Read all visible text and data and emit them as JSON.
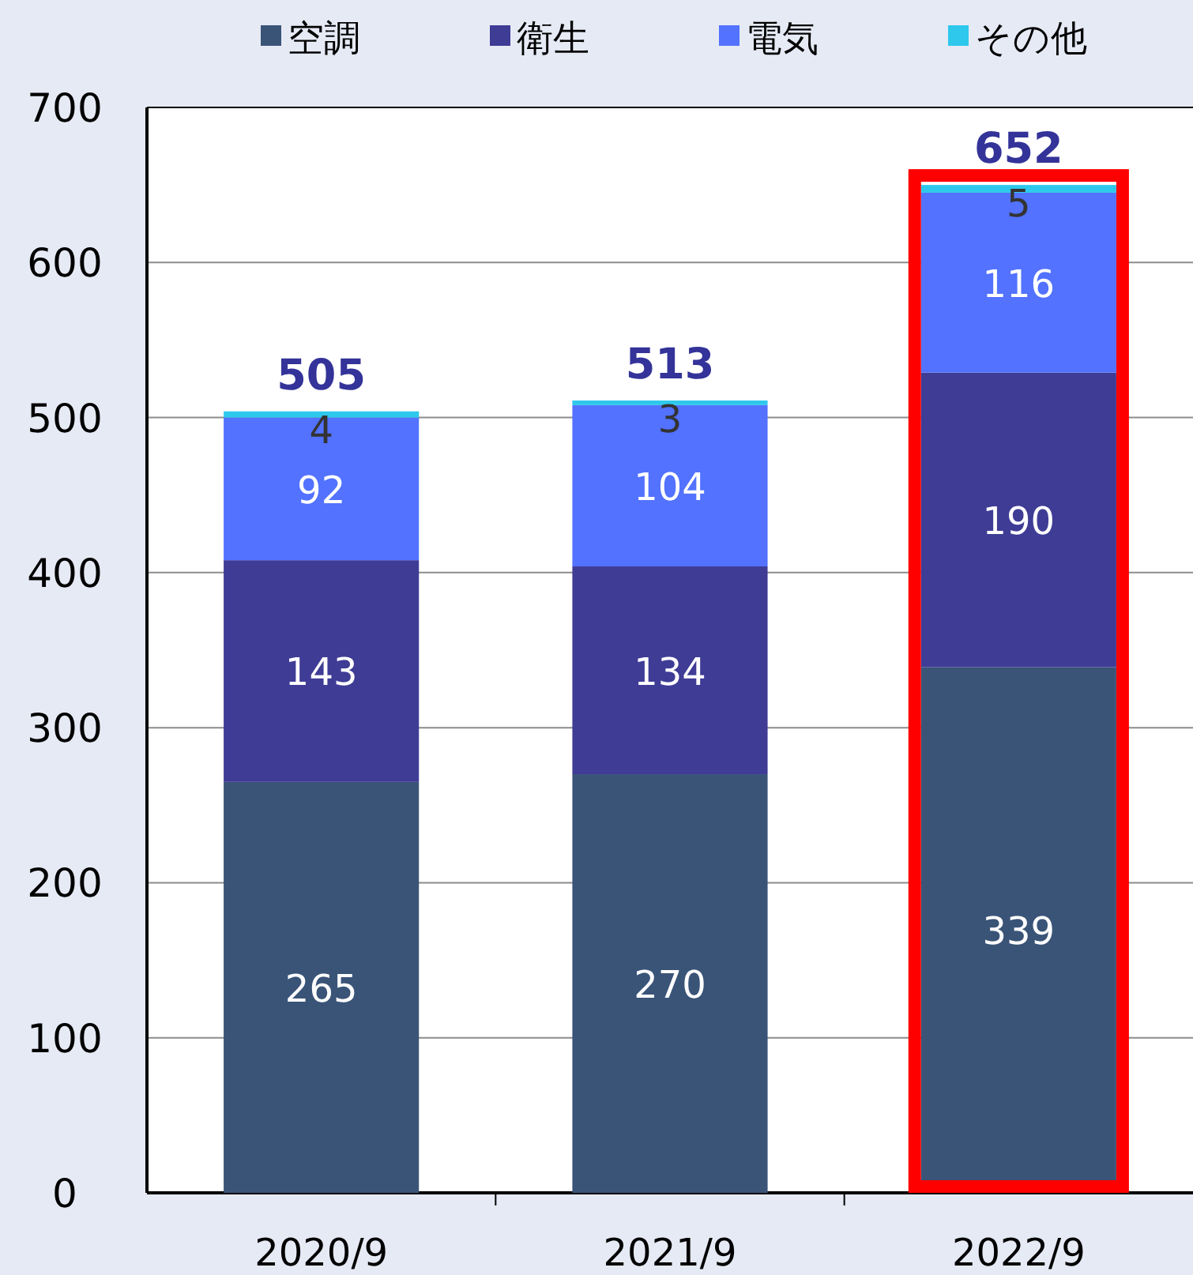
{
  "chart_data": {
    "type": "bar",
    "stacked": true,
    "categories": [
      "2020/9",
      "2021/9",
      "2022/9"
    ],
    "series": [
      {
        "name": "空調",
        "color": "#3a5478",
        "values": [
          265,
          270,
          339
        ]
      },
      {
        "name": "衛生",
        "color": "#3f3c96",
        "values": [
          143,
          134,
          190
        ]
      },
      {
        "name": "電気",
        "color": "#5272ff",
        "values": [
          92,
          104,
          116
        ]
      },
      {
        "name": "その他",
        "color": "#2ec8ec",
        "values": [
          4,
          3,
          5
        ]
      }
    ],
    "totals": [
      "505",
      "513",
      "652"
    ],
    "data_labels": true,
    "ylim": [
      0,
      700
    ],
    "yticks": [
      0,
      100,
      200,
      300,
      400,
      500,
      600,
      700
    ],
    "grid": "y",
    "legend": "top"
  }
}
